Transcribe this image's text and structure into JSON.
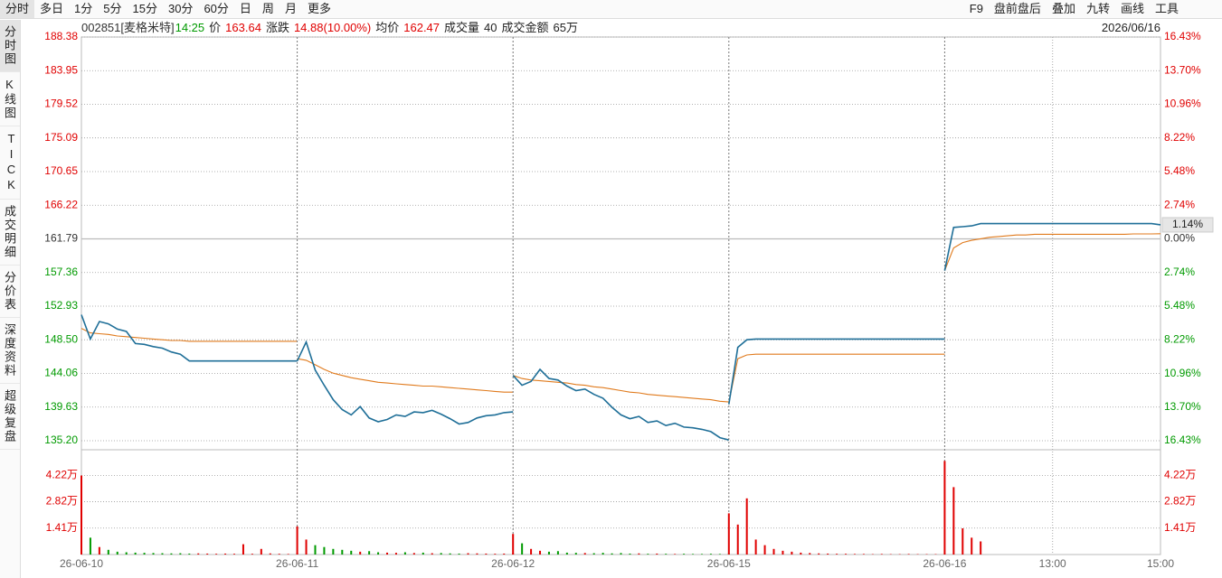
{
  "toolbar": {
    "tabs": [
      "分时",
      "多日",
      "1分",
      "5分",
      "15分",
      "30分",
      "60分",
      "日",
      "周",
      "月",
      "更多"
    ],
    "tools": [
      "F9",
      "盘前盘后",
      "叠加",
      "九转",
      "画线",
      "工具"
    ]
  },
  "sidebar": [
    "分时图",
    "K线图",
    "TICK",
    "成交明细",
    "分价表",
    "深度资料",
    "超级复盘"
  ],
  "info": {
    "code": "002851[麦格米特]",
    "time": "14:25",
    "price_label": "价",
    "price": "163.64",
    "change_label": "涨跌",
    "change": "14.88(10.00%)",
    "avg_label": "均价",
    "avg": "162.47",
    "volume_label": "成交量",
    "volume": "40",
    "amount_label": "成交金额",
    "amount": "65万",
    "date": "2026/06/16"
  },
  "chart_data": {
    "type": "line",
    "ylim": [
      135.2,
      188.38
    ],
    "yticks": [
      188.38,
      183.95,
      179.52,
      175.09,
      170.65,
      166.22,
      161.79,
      157.36,
      152.93,
      {
        "value": 148.5,
        "label": "148.50"
      },
      144.06,
      139.63,
      {
        "value": 135.2,
        "label": "135.20"
      }
    ],
    "y2lim": [
      -16.43,
      16.43
    ],
    "y2ticks": [
      {
        "value": 16.43,
        "label": "16.43%"
      },
      {
        "value": 13.7,
        "label": "13.70%"
      },
      {
        "value": 10.96,
        "label": "10.96%"
      },
      {
        "value": 8.22,
        "label": "8.22%"
      },
      {
        "value": 5.48,
        "label": "5.48%"
      },
      {
        "value": 2.74,
        "label": "2.74%"
      },
      {
        "value": 0,
        "label": "0.00%"
      },
      {
        "value": -2.74,
        "label": "2.74%"
      },
      {
        "value": -5.48,
        "label": "5.48%"
      },
      {
        "value": -8.22,
        "label": "8.22%"
      },
      {
        "value": -10.96,
        "label": "10.96%"
      },
      {
        "value": -13.7,
        "label": "13.70%"
      },
      {
        "value": -16.43,
        "label": "16.43%"
      }
    ],
    "vlim": [
      0,
      55000
    ],
    "vticks": [
      {
        "value": 42200,
        "label": "4.22万"
      },
      {
        "value": 28200,
        "label": "2.82万"
      },
      {
        "value": 14100,
        "label": "1.41万"
      }
    ],
    "last_change": {
      "value": 1.14,
      "label": "1.14%"
    },
    "time_labels": [
      "13:00",
      "15:00"
    ],
    "price_color": "#1f6f98",
    "avg_color": "#e07a1c",
    "up_color": "#e00000",
    "down_color": "#009a00",
    "days": [
      {
        "label": "26-06-10",
        "price": [
          151.8,
          148.6,
          150.9,
          150.6,
          149.9,
          149.6,
          148.0,
          147.9,
          147.6,
          147.4,
          146.9,
          146.6,
          145.7,
          145.7,
          145.7,
          145.7,
          145.7,
          145.7,
          145.7,
          145.7,
          145.7,
          145.7,
          145.7,
          145.7,
          145.7
        ],
        "avg": [
          150.0,
          149.4,
          149.3,
          149.2,
          149.0,
          148.9,
          148.8,
          148.7,
          148.6,
          148.5,
          148.4,
          148.4,
          148.3,
          148.3,
          148.3,
          148.3,
          148.3,
          148.3,
          148.3,
          148.3,
          148.3,
          148.3,
          148.3,
          148.3,
          148.3
        ],
        "volume": [
          42200,
          9000,
          4000,
          2500,
          1500,
          1200,
          1000,
          900,
          800,
          700,
          600,
          700,
          500,
          600,
          500,
          400,
          500,
          400,
          5500,
          400,
          3000,
          600,
          400,
          300,
          900
        ]
      },
      {
        "label": "26-06-11",
        "price": [
          145.7,
          148.2,
          144.5,
          142.5,
          140.6,
          139.3,
          138.6,
          139.7,
          138.2,
          137.7,
          138.0,
          138.6,
          138.4,
          139.0,
          138.9,
          139.2,
          138.7,
          138.1,
          137.4,
          137.6,
          138.2,
          138.5,
          138.6,
          138.9,
          139.0
        ],
        "avg": [
          146.0,
          145.8,
          145.2,
          144.6,
          144.1,
          143.8,
          143.5,
          143.3,
          143.1,
          142.9,
          142.8,
          142.7,
          142.6,
          142.5,
          142.4,
          142.4,
          142.3,
          142.2,
          142.1,
          142.0,
          141.9,
          141.8,
          141.7,
          141.6,
          141.6
        ],
        "volume": [
          15000,
          8000,
          5000,
          4000,
          3000,
          2500,
          2000,
          1500,
          1800,
          1200,
          1000,
          900,
          1200,
          800,
          1000,
          700,
          800,
          600,
          500,
          700,
          600,
          500,
          400,
          500,
          600
        ]
      },
      {
        "label": "26-06-12",
        "price": [
          143.8,
          142.5,
          143.0,
          144.6,
          143.4,
          143.2,
          142.4,
          141.8,
          142.0,
          141.3,
          140.8,
          139.6,
          138.6,
          138.1,
          138.4,
          137.6,
          137.8,
          137.2,
          137.5,
          137.0,
          136.9,
          136.7,
          136.4,
          135.6,
          135.3
        ],
        "avg": [
          143.8,
          143.4,
          143.2,
          143.1,
          143.0,
          142.9,
          142.8,
          142.6,
          142.5,
          142.3,
          142.2,
          142.0,
          141.8,
          141.6,
          141.5,
          141.3,
          141.2,
          141.1,
          141.0,
          140.9,
          140.8,
          140.7,
          140.6,
          140.4,
          140.3
        ],
        "volume": [
          11000,
          6000,
          3000,
          2000,
          1500,
          1800,
          1000,
          900,
          800,
          700,
          900,
          600,
          800,
          500,
          600,
          400,
          500,
          400,
          300,
          400,
          300,
          300,
          400,
          300,
          600
        ]
      },
      {
        "label": "26-06-15",
        "price": [
          140.0,
          147.5,
          148.5,
          148.6,
          148.6,
          148.6,
          148.6,
          148.6,
          148.6,
          148.6,
          148.6,
          148.6,
          148.6,
          148.6,
          148.6,
          148.6,
          148.6,
          148.6,
          148.6,
          148.6,
          148.6,
          148.6,
          148.6,
          148.6,
          148.6
        ],
        "avg": [
          140.2,
          146.0,
          146.5,
          146.6,
          146.6,
          146.6,
          146.6,
          146.6,
          146.6,
          146.6,
          146.6,
          146.6,
          146.6,
          146.6,
          146.6,
          146.6,
          146.6,
          146.6,
          146.6,
          146.6,
          146.6,
          146.6,
          146.6,
          146.6,
          146.6
        ],
        "volume": [
          22000,
          16000,
          30000,
          8000,
          5000,
          3000,
          2000,
          1500,
          1000,
          800,
          600,
          500,
          400,
          400,
          300,
          300,
          200,
          300,
          200,
          200,
          300,
          200,
          200,
          200,
          300
        ]
      },
      {
        "label": "26-06-16",
        "price": [
          157.6,
          163.3,
          163.4,
          163.5,
          163.8,
          163.8,
          163.8,
          163.8,
          163.8,
          163.8,
          163.8,
          163.8,
          163.8,
          163.8,
          163.8,
          163.8,
          163.8,
          163.8,
          163.8,
          163.8,
          163.8,
          163.8,
          163.8,
          163.8,
          163.64
        ],
        "avg": [
          157.6,
          160.6,
          161.3,
          161.6,
          161.8,
          162.0,
          162.1,
          162.2,
          162.3,
          162.3,
          162.4,
          162.4,
          162.4,
          162.4,
          162.4,
          162.4,
          162.4,
          162.4,
          162.4,
          162.4,
          162.4,
          162.45,
          162.45,
          162.45,
          162.47
        ],
        "volume": [
          50000,
          36000,
          14000,
          9000,
          7000,
          null,
          null,
          null,
          null,
          null,
          null,
          null,
          null,
          null,
          null,
          null,
          null,
          null,
          null,
          null,
          null,
          null,
          null,
          null,
          null
        ]
      }
    ]
  }
}
